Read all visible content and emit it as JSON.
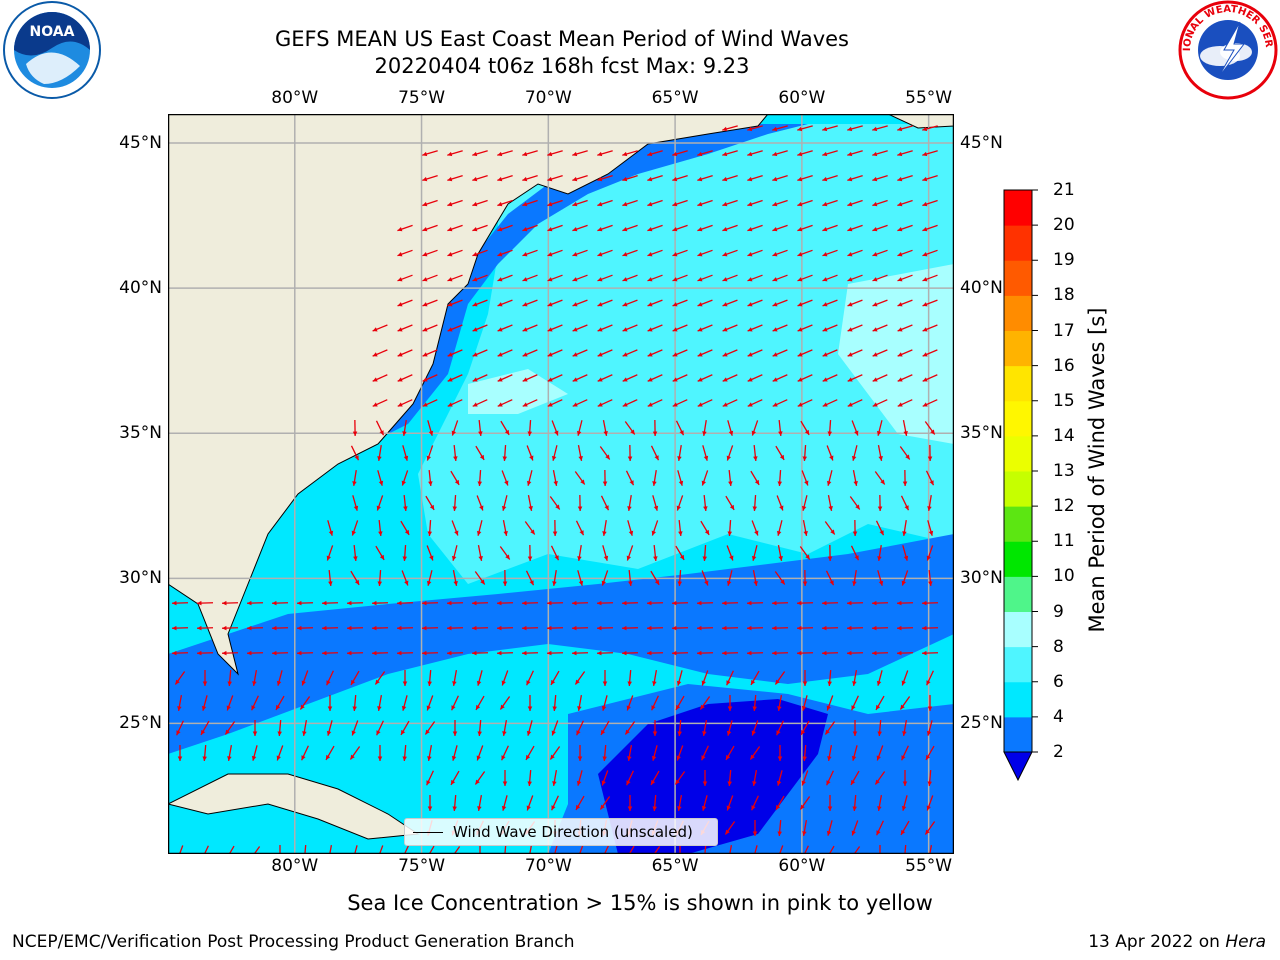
{
  "header": {
    "title_line1": "GEFS MEAN US East Coast Mean Period of Wind Waves",
    "title_line2": "20220404 t06z 168h fcst   Max: 9.23"
  },
  "map": {
    "projection": "lon-lat",
    "lon_range": [
      -85,
      -54
    ],
    "lat_range": [
      20.5,
      46
    ],
    "lon_ticks": [
      {
        "value": -80,
        "label": "80°W"
      },
      {
        "value": -75,
        "label": "75°W"
      },
      {
        "value": -70,
        "label": "70°W"
      },
      {
        "value": -65,
        "label": "65°W"
      },
      {
        "value": -60,
        "label": "60°W"
      },
      {
        "value": -55,
        "label": "55°W"
      }
    ],
    "lat_ticks": [
      {
        "value": 25,
        "label": "25°N"
      },
      {
        "value": 30,
        "label": "30°N"
      },
      {
        "value": 35,
        "label": "35°N"
      },
      {
        "value": 40,
        "label": "40°N"
      },
      {
        "value": 45,
        "label": "45°N"
      }
    ],
    "gridlines": true,
    "arrow_color": "#e8000b",
    "land_color": "#efeddc",
    "legend_label": "Wind Wave Direction (unscaled)"
  },
  "colorbar": {
    "title": "Mean Period of Wind Waves [s]",
    "levels": [
      2,
      4,
      6,
      8,
      9,
      10,
      11,
      12,
      13,
      14,
      15,
      16,
      17,
      18,
      19,
      20,
      21
    ],
    "colors": [
      "#0a78ff",
      "#00e8ff",
      "#4ff5ff",
      "#a8ffff",
      "#4ff58a",
      "#00e700",
      "#5ce612",
      "#c6ff00",
      "#ebff00",
      "#fff700",
      "#ffe500",
      "#ffb300",
      "#ff8c00",
      "#ff5a00",
      "#ff3200",
      "#ff0000"
    ],
    "under_color": "#0000e8",
    "extend": "min"
  },
  "footer": {
    "note": "Sea Ice Concentration > 15% is shown in pink to yellow",
    "credit": "NCEP/EMC/Verification Post Processing Product Generation Branch",
    "date": "13 Apr 2022 on",
    "machine": "Hera"
  },
  "logos": {
    "left": {
      "text": "NOAA",
      "color": "#0a5aa8"
    },
    "right": {
      "text": "NATIONAL WEATHER SERVICE",
      "color": "#e8000b"
    }
  }
}
